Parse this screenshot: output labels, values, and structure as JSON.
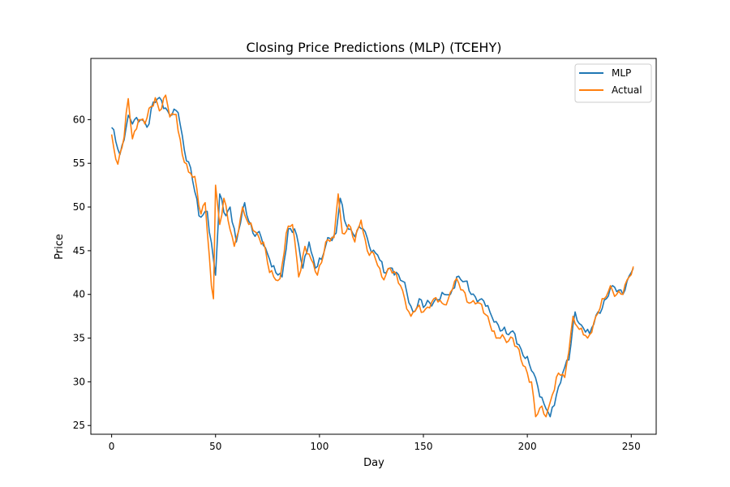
{
  "chart_data": {
    "type": "line",
    "title": "Closing Price Predictions (MLP) (TCEHY)",
    "xlabel": "Day",
    "ylabel": "Price",
    "xlim": [
      -10,
      262
    ],
    "ylim": [
      24,
      67
    ],
    "xticks": [
      0,
      50,
      100,
      150,
      200,
      250
    ],
    "yticks": [
      25,
      30,
      35,
      40,
      45,
      50,
      55,
      60
    ],
    "grid": false,
    "legend_position": "top-right",
    "series": [
      {
        "name": "MLP",
        "color": "#1f77b4",
        "keypoints": [
          [
            0,
            59.1
          ],
          [
            4,
            56.0
          ],
          [
            8,
            60.5
          ],
          [
            10,
            59.5
          ],
          [
            14,
            60.0
          ],
          [
            18,
            59.5
          ],
          [
            20,
            62.0
          ],
          [
            24,
            62.2
          ],
          [
            28,
            60.5
          ],
          [
            32,
            60.8
          ],
          [
            35,
            56.5
          ],
          [
            38,
            54.5
          ],
          [
            42,
            49.0
          ],
          [
            46,
            49.5
          ],
          [
            49,
            44.0
          ],
          [
            50,
            42.2
          ],
          [
            52,
            51.5
          ],
          [
            55,
            49.0
          ],
          [
            57,
            50.0
          ],
          [
            60,
            46.0
          ],
          [
            64,
            50.5
          ],
          [
            68,
            47.0
          ],
          [
            72,
            46.5
          ],
          [
            76,
            44.0
          ],
          [
            79,
            42.5
          ],
          [
            82,
            42.0
          ],
          [
            85,
            47.5
          ],
          [
            88,
            47.5
          ],
          [
            92,
            43.0
          ],
          [
            95,
            46.0
          ],
          [
            98,
            43.0
          ],
          [
            101,
            44.0
          ],
          [
            104,
            46.5
          ],
          [
            108,
            47.0
          ],
          [
            110,
            51.0
          ],
          [
            112,
            48.5
          ],
          [
            116,
            47.0
          ],
          [
            121,
            47.5
          ],
          [
            124,
            45.5
          ],
          [
            128,
            44.5
          ],
          [
            131,
            42.5
          ],
          [
            135,
            43.0
          ],
          [
            140,
            41.5
          ],
          [
            145,
            38.0
          ],
          [
            148,
            39.5
          ],
          [
            150,
            38.5
          ],
          [
            156,
            39.5
          ],
          [
            160,
            40.0
          ],
          [
            163,
            40.0
          ],
          [
            166,
            42.0
          ],
          [
            170,
            41.5
          ],
          [
            173,
            40.0
          ],
          [
            178,
            39.5
          ],
          [
            182,
            38.0
          ],
          [
            186,
            36.5
          ],
          [
            190,
            35.5
          ],
          [
            194,
            35.5
          ],
          [
            198,
            33.0
          ],
          [
            201,
            32.0
          ],
          [
            203,
            31.0
          ],
          [
            205,
            29.5
          ],
          [
            208,
            27.5
          ],
          [
            211,
            26.0
          ],
          [
            214,
            28.5
          ],
          [
            217,
            31.0
          ],
          [
            220,
            32.5
          ],
          [
            223,
            38.0
          ],
          [
            226,
            36.5
          ],
          [
            230,
            35.5
          ],
          [
            234,
            38.0
          ],
          [
            238,
            39.5
          ],
          [
            241,
            41.0
          ],
          [
            244,
            40.5
          ],
          [
            247,
            40.5
          ],
          [
            250,
            42.5
          ],
          [
            251,
            43.0
          ]
        ]
      },
      {
        "name": "Actual",
        "color": "#ff7f0e",
        "keypoints": [
          [
            0,
            58.3
          ],
          [
            3,
            54.9
          ],
          [
            6,
            58.0
          ],
          [
            8,
            62.4
          ],
          [
            10,
            57.8
          ],
          [
            13,
            60.0
          ],
          [
            16,
            59.5
          ],
          [
            19,
            61.5
          ],
          [
            21,
            62.5
          ],
          [
            23,
            61.0
          ],
          [
            26,
            62.8
          ],
          [
            28,
            60.3
          ],
          [
            31,
            60.6
          ],
          [
            34,
            56.0
          ],
          [
            37,
            54.0
          ],
          [
            40,
            53.5
          ],
          [
            43,
            49.2
          ],
          [
            45,
            50.5
          ],
          [
            48,
            41.0
          ],
          [
            49,
            39.5
          ],
          [
            50,
            52.5
          ],
          [
            52,
            48.0
          ],
          [
            54,
            51.0
          ],
          [
            56,
            48.5
          ],
          [
            59,
            45.5
          ],
          [
            63,
            50.0
          ],
          [
            66,
            48.0
          ],
          [
            70,
            47.0
          ],
          [
            73,
            46.0
          ],
          [
            76,
            42.5
          ],
          [
            78,
            42.0
          ],
          [
            81,
            41.8
          ],
          [
            84,
            47.0
          ],
          [
            87,
            48.0
          ],
          [
            90,
            42.0
          ],
          [
            93,
            45.5
          ],
          [
            96,
            44.0
          ],
          [
            99,
            42.2
          ],
          [
            103,
            46.0
          ],
          [
            107,
            46.5
          ],
          [
            109,
            51.5
          ],
          [
            111,
            47.0
          ],
          [
            114,
            48.0
          ],
          [
            117,
            46.0
          ],
          [
            120,
            48.5
          ],
          [
            123,
            45.0
          ],
          [
            127,
            44.0
          ],
          [
            130,
            42.0
          ],
          [
            134,
            43.0
          ],
          [
            139,
            41.0
          ],
          [
            144,
            37.5
          ],
          [
            147,
            38.5
          ],
          [
            150,
            38.0
          ],
          [
            155,
            39.5
          ],
          [
            159,
            39.0
          ],
          [
            162,
            39.5
          ],
          [
            165,
            41.5
          ],
          [
            169,
            40.5
          ],
          [
            172,
            39.0
          ],
          [
            177,
            39.0
          ],
          [
            181,
            37.5
          ],
          [
            185,
            35.0
          ],
          [
            189,
            35.0
          ],
          [
            193,
            35.0
          ],
          [
            197,
            32.5
          ],
          [
            200,
            31.0
          ],
          [
            202,
            30.0
          ],
          [
            204,
            26.0
          ],
          [
            206,
            27.0
          ],
          [
            209,
            26.0
          ],
          [
            212,
            28.5
          ],
          [
            215,
            31.0
          ],
          [
            218,
            30.5
          ],
          [
            222,
            37.5
          ],
          [
            225,
            36.0
          ],
          [
            229,
            35.0
          ],
          [
            233,
            37.5
          ],
          [
            237,
            39.5
          ],
          [
            240,
            41.0
          ],
          [
            243,
            40.0
          ],
          [
            246,
            40.0
          ],
          [
            249,
            42.0
          ],
          [
            251,
            43.2
          ]
        ]
      }
    ]
  }
}
